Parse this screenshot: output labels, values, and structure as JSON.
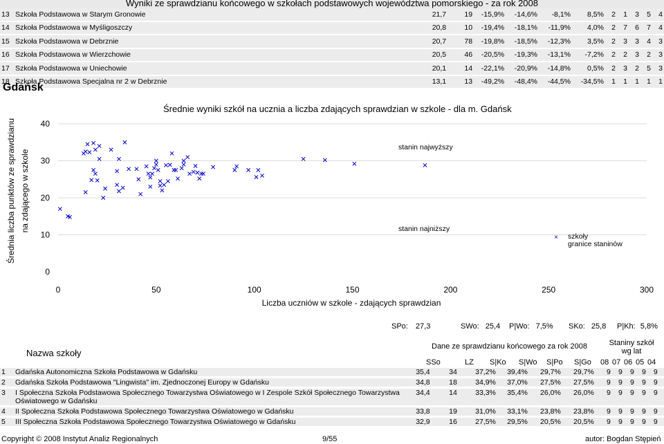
{
  "header": {
    "title": "Wyniki ze sprawdzianu końcowego w szkołach podstawowych województwa pomorskiego - za rok 2008"
  },
  "top_rows": [
    {
      "no": "13",
      "name": "Szkoła Podstawowa w Starym Gronowie",
      "a": "21,7",
      "b": "19",
      "c": "-15,9%",
      "d": "-14,6%",
      "e": "-8,1%",
      "f": "8,5%",
      "s": [
        "2",
        "1",
        "3",
        "5",
        "4"
      ]
    },
    {
      "no": "14",
      "name": "Szkoła Podstawowa w Myśligoszczy",
      "a": "20,8",
      "b": "10",
      "c": "-19,4%",
      "d": "-18,1%",
      "e": "-11,9%",
      "f": "4,0%",
      "s": [
        "2",
        "7",
        "6",
        "7",
        "4"
      ]
    },
    {
      "no": "15",
      "name": "Szkoła Podstawowa w Debrznie",
      "a": "20,7",
      "b": "78",
      "c": "-19,8%",
      "d": "-18,5%",
      "e": "-12,3%",
      "f": "3,5%",
      "s": [
        "2",
        "3",
        "3",
        "4",
        "3"
      ]
    },
    {
      "no": "16",
      "name": "Szkoła Podstawowa w Wierzchowie",
      "a": "20,5",
      "b": "46",
      "c": "-20,5%",
      "d": "-19,3%",
      "e": "-13,1%",
      "f": "-7,2%",
      "s": [
        "2",
        "2",
        "3",
        "2",
        "3"
      ]
    },
    {
      "no": "17",
      "name": "Szkoła Podstawowa w Uniechowie",
      "a": "20,1",
      "b": "14",
      "c": "-22,1%",
      "d": "-20,9%",
      "e": "-14,8%",
      "f": "0,5%",
      "s": [
        "2",
        "3",
        "2",
        "5",
        "3"
      ]
    },
    {
      "no": "18",
      "name": "Szkoła Podstawowa Specjalna nr 2 w Debrznie",
      "a": "13,1",
      "b": "13",
      "c": "-49,2%",
      "d": "-48,4%",
      "e": "-44,5%",
      "f": "-34,5%",
      "s": [
        "1",
        "1",
        "1",
        "1",
        "1"
      ]
    }
  ],
  "section_title": "Gdańsk",
  "chart_data": {
    "type": "scatter",
    "title": "Średnie wyniki szkół na ucznia a liczba zdających sprawdzian w szkole - dla m. Gdańsk",
    "xlabel": "Liczba uczniów w szkole - zdających sprawdzian",
    "ylabel_line1": "Średnia liczba punktów ze sprawdzianu",
    "ylabel_line2": "na zdającego w szkole",
    "xlim": [
      0,
      300
    ],
    "ylim": [
      0,
      40
    ],
    "xticks": [
      "0",
      "50",
      "100",
      "150",
      "200",
      "250",
      "300"
    ],
    "yticks": [
      "0",
      "10",
      "20",
      "30",
      "40"
    ],
    "series": [
      {
        "name": "szkoły",
        "color": "#0000cc",
        "points": [
          [
            1,
            17
          ],
          [
            5,
            15
          ],
          [
            6,
            14.8
          ],
          [
            13,
            32
          ],
          [
            14,
            32.5
          ],
          [
            14,
            21.5
          ],
          [
            15,
            34.5
          ],
          [
            16,
            32.3
          ],
          [
            17,
            24.8
          ],
          [
            18,
            34.8
          ],
          [
            18,
            27.5
          ],
          [
            19,
            33
          ],
          [
            19,
            26.5
          ],
          [
            20,
            24.7
          ],
          [
            21,
            30.5
          ],
          [
            21,
            34
          ],
          [
            23,
            20
          ],
          [
            24,
            22.5
          ],
          [
            27,
            33
          ],
          [
            30,
            23.5
          ],
          [
            30,
            27.2
          ],
          [
            31,
            30.5
          ],
          [
            31,
            21.8
          ],
          [
            33,
            22.7
          ],
          [
            34,
            35
          ],
          [
            36,
            27.8
          ],
          [
            40,
            27.8
          ],
          [
            41,
            25
          ],
          [
            42,
            21
          ],
          [
            45,
            28.5
          ],
          [
            46,
            26.5
          ],
          [
            47,
            23
          ],
          [
            47,
            25.5
          ],
          [
            48,
            26.5
          ],
          [
            49,
            28
          ],
          [
            50,
            29
          ],
          [
            50,
            30
          ],
          [
            51,
            27.5
          ],
          [
            52,
            24.5
          ],
          [
            52,
            23.3
          ],
          [
            53,
            22
          ],
          [
            54,
            23.5
          ],
          [
            55,
            28.8
          ],
          [
            56,
            24.5
          ],
          [
            57,
            28.9
          ],
          [
            58,
            32
          ],
          [
            59,
            27.5
          ],
          [
            60,
            27.5
          ],
          [
            61,
            25.2
          ],
          [
            63,
            28
          ],
          [
            64,
            29
          ],
          [
            64,
            30
          ],
          [
            66,
            31
          ],
          [
            67,
            26.5
          ],
          [
            69,
            27
          ],
          [
            70,
            28.6
          ],
          [
            71,
            26.8
          ],
          [
            72,
            25.2
          ],
          [
            73,
            26.5
          ],
          [
            74,
            26.5
          ],
          [
            79,
            28.3
          ],
          [
            90,
            27.5
          ],
          [
            91,
            28.5
          ],
          [
            97,
            27.5
          ],
          [
            101,
            25.6
          ],
          [
            102,
            27.5
          ],
          [
            104,
            26
          ],
          [
            125,
            30.5
          ],
          [
            136,
            30.2
          ],
          [
            151,
            29.2
          ],
          [
            187,
            28.8
          ]
        ]
      }
    ],
    "annotations": [
      "stanin najwyższy",
      "stanin najniższy"
    ],
    "legend": [
      "szkoły",
      "granice staninów"
    ],
    "legend_position": "lower-right"
  },
  "stats": {
    "sso_label": "SPo:",
    "sso_value": "27,3",
    "swo_label": "SWo:",
    "swo_value": "25,4",
    "pwo_label": "P|Wo:",
    "pwo_value": "7,5%",
    "sko_label": "SKo:",
    "sko_value": "25,8",
    "pkh_label": "P|Kh:",
    "pkh_value": "5,8%"
  },
  "bottom_header": {
    "name_col": "Nazwa szkoły",
    "data_group": "Dane ze sprawdzianu końcowego za rok 2008",
    "stanine_group": "Staniny szkół wg lat",
    "cols": [
      "SSo",
      "LZ",
      "S|Ko",
      "S|Wo",
      "S|Po",
      "S|Go"
    ],
    "years": [
      "08",
      "07",
      "06",
      "05",
      "04"
    ]
  },
  "bottom_rows": [
    {
      "no": "1",
      "name": "Gdańska Autonomiczna Szkoła Podstawowa w Gdańsku",
      "a": "35,4",
      "b": "34",
      "c": "37,2%",
      "d": "39,4%",
      "e": "29,7%",
      "f": "29,7%",
      "s": [
        "9",
        "9",
        "9",
        "9",
        "9"
      ]
    },
    {
      "no": "2",
      "name": "Gdańska Szkoła Podstawowa \"Lingwista\" im. Zjednoczonej Europy w Gdańsku",
      "a": "34,8",
      "b": "18",
      "c": "34,9%",
      "d": "37,0%",
      "e": "27,5%",
      "f": "27,5%",
      "s": [
        "9",
        "9",
        "9",
        "9",
        "9"
      ]
    },
    {
      "no": "3",
      "name": "I Społeczna Szkoła Podstawowa Społecznego Towarzystwa Oświatowego w I Zespole Szkół Społecznego Towarzystwa Oświatowego w Gdańsku",
      "a": "34,4",
      "b": "14",
      "c": "33,3%",
      "d": "35,4%",
      "e": "26,0%",
      "f": "26,0%",
      "s": [
        "9",
        "9",
        "9",
        "9",
        "9"
      ]
    },
    {
      "no": "4",
      "name": "II Społeczna Szkoła Podstawowa Społecznego Towarzystwa Oświatowego w Gdańsku",
      "a": "33,8",
      "b": "19",
      "c": "31,0%",
      "d": "33,1%",
      "e": "23,8%",
      "f": "23,8%",
      "s": [
        "9",
        "9",
        "9",
        "9",
        "9"
      ]
    },
    {
      "no": "5",
      "name": "III Społeczna Szkoła Podstawowa Społecznego Towarzystwa Oświatowego w Gdańsku",
      "a": "32,9",
      "b": "16",
      "c": "27,5%",
      "d": "29,5%",
      "e": "20,5%",
      "f": "20,5%",
      "s": [
        "9",
        "9",
        "9",
        "9",
        "9"
      ]
    }
  ],
  "footer": {
    "copyright": "Copyright © 2008 Instytut Analiz Regionalnych",
    "page": "9/55",
    "author": "autor: Bogdan Stępień"
  }
}
